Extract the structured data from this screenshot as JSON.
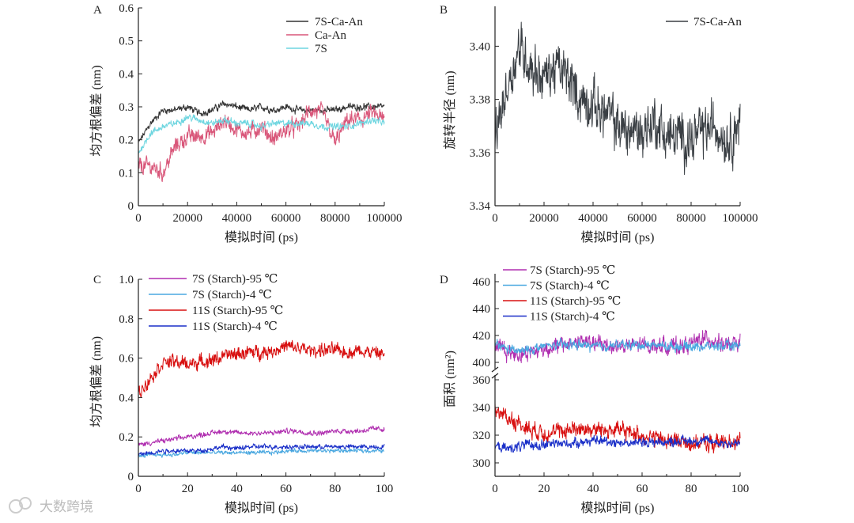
{
  "watermark": "大数跨境",
  "chart_data": [
    {
      "panel": "A",
      "type": "line",
      "xlabel": "模拟时间 (ps)",
      "ylabel": "均方根偏差 (nm)",
      "xlim": [
        0,
        100000
      ],
      "ylim": [
        0,
        0.6
      ],
      "xticks": [
        0,
        20000,
        40000,
        60000,
        80000,
        100000
      ],
      "yticks": [
        0,
        0.1,
        0.2,
        0.3,
        0.4,
        0.5,
        0.6
      ],
      "x_step": 5000,
      "legend": "top-right",
      "series": [
        {
          "name": "7S-Ca-An",
          "color": "#333333",
          "noise": 0.012,
          "values": [
            0.19,
            0.25,
            0.29,
            0.29,
            0.3,
            0.28,
            0.29,
            0.31,
            0.3,
            0.29,
            0.3,
            0.29,
            0.3,
            0.29,
            0.29,
            0.29,
            0.29,
            0.3,
            0.3,
            0.3,
            0.3
          ]
        },
        {
          "name": "Ca-An",
          "color": "#d9577a",
          "noise": 0.03,
          "values": [
            0.12,
            0.12,
            0.1,
            0.18,
            0.21,
            0.21,
            0.22,
            0.26,
            0.23,
            0.22,
            0.24,
            0.2,
            0.23,
            0.24,
            0.29,
            0.28,
            0.19,
            0.26,
            0.26,
            0.28,
            0.26
          ]
        },
        {
          "name": "7S",
          "color": "#6fd6e0",
          "noise": 0.012,
          "values": [
            0.16,
            0.22,
            0.24,
            0.25,
            0.27,
            0.26,
            0.25,
            0.26,
            0.25,
            0.25,
            0.24,
            0.25,
            0.25,
            0.25,
            0.25,
            0.24,
            0.24,
            0.24,
            0.25,
            0.26,
            0.25
          ]
        }
      ]
    },
    {
      "panel": "B",
      "type": "line",
      "xlabel": "模拟时间 (ps)",
      "ylabel": "旋转半径 (nm)",
      "xlim": [
        0,
        100000
      ],
      "ylim": [
        3.34,
        3.415
      ],
      "xticks": [
        0,
        20000,
        40000,
        60000,
        80000,
        100000
      ],
      "yticks": [
        "3.34",
        "3.36",
        "3.38",
        "3.40"
      ],
      "x_step": 5000,
      "legend": "top-right",
      "series": [
        {
          "name": "7S-Ca-An",
          "color": "#3a3f44",
          "noise": 0.011,
          "values": [
            3.365,
            3.385,
            3.4,
            3.392,
            3.388,
            3.392,
            3.388,
            3.38,
            3.378,
            3.375,
            3.37,
            3.368,
            3.368,
            3.372,
            3.366,
            3.366,
            3.365,
            3.368,
            3.37,
            3.365,
            3.372
          ]
        }
      ]
    },
    {
      "panel": "C",
      "type": "line",
      "xlabel": "模拟时间 (ps)",
      "ylabel": "均方根偏差 (nm)",
      "xlim": [
        0,
        100
      ],
      "ylim": [
        0,
        1.0
      ],
      "xticks": [
        0,
        20,
        40,
        60,
        80,
        100
      ],
      "yticks": [
        "0",
        "0.2",
        "0.4",
        "0.6",
        "0.8",
        "1.0"
      ],
      "x_step": 5,
      "legend": "top-left",
      "series": [
        {
          "name": "7S (Starch)-95 ℃",
          "color": "#b02fb0",
          "noise": 0.015,
          "values": [
            0.16,
            0.17,
            0.18,
            0.19,
            0.2,
            0.21,
            0.22,
            0.23,
            0.22,
            0.22,
            0.22,
            0.22,
            0.23,
            0.23,
            0.22,
            0.22,
            0.23,
            0.23,
            0.23,
            0.24,
            0.24
          ]
        },
        {
          "name": "7S (Starch)-4 ℃",
          "color": "#4aa8e0",
          "noise": 0.012,
          "values": [
            0.1,
            0.11,
            0.11,
            0.11,
            0.12,
            0.12,
            0.12,
            0.12,
            0.12,
            0.12,
            0.12,
            0.12,
            0.13,
            0.13,
            0.13,
            0.13,
            0.13,
            0.13,
            0.13,
            0.13,
            0.13
          ]
        },
        {
          "name": "11S (Starch)-95 ℃",
          "color": "#d81010",
          "noise": 0.04,
          "values": [
            0.42,
            0.5,
            0.58,
            0.58,
            0.57,
            0.58,
            0.59,
            0.61,
            0.62,
            0.63,
            0.63,
            0.64,
            0.66,
            0.65,
            0.64,
            0.64,
            0.64,
            0.63,
            0.64,
            0.63,
            0.62
          ]
        },
        {
          "name": "11S (Starch)-4 ℃",
          "color": "#1a2fc8",
          "noise": 0.014,
          "values": [
            0.11,
            0.12,
            0.13,
            0.13,
            0.13,
            0.13,
            0.14,
            0.15,
            0.14,
            0.15,
            0.15,
            0.15,
            0.15,
            0.15,
            0.15,
            0.15,
            0.15,
            0.15,
            0.15,
            0.15,
            0.15
          ]
        }
      ]
    },
    {
      "panel": "D",
      "type": "line",
      "xlabel": "模拟时间 (ps)",
      "ylabel": "面积 (nm²)",
      "xlim": [
        0,
        100
      ],
      "ylim": [
        290,
        465
      ],
      "axis_break": [
        365,
        395
      ],
      "xticks": [
        0,
        20,
        40,
        60,
        80,
        100
      ],
      "yticks": [
        300,
        320,
        340,
        360,
        400,
        420,
        440,
        460
      ],
      "x_step": 5,
      "legend": "top-left",
      "series": [
        {
          "name": "7S (Starch)-95 ℃",
          "color": "#b02fb0",
          "noise": 7,
          "values": [
            415,
            408,
            406,
            408,
            410,
            412,
            414,
            416,
            414,
            413,
            412,
            412,
            413,
            413,
            412,
            412,
            414,
            418,
            416,
            412,
            414
          ]
        },
        {
          "name": "7S (Starch)-4 ℃",
          "color": "#4aa8e0",
          "noise": 4,
          "values": [
            414,
            410,
            408,
            410,
            412,
            413,
            413,
            413,
            412,
            412,
            413,
            413,
            413,
            413,
            412,
            412,
            412,
            412,
            412,
            412,
            413
          ]
        },
        {
          "name": "11S (Starch)-95 ℃",
          "color": "#d81010",
          "noise": 7,
          "values": [
            338,
            333,
            328,
            324,
            322,
            322,
            324,
            325,
            324,
            324,
            324,
            322,
            320,
            318,
            316,
            316,
            314,
            314,
            314,
            316,
            316
          ]
        },
        {
          "name": "11S (Starch)-4 ℃",
          "color": "#1a2fc8",
          "noise": 4,
          "values": [
            312,
            310,
            312,
            313,
            313,
            314,
            314,
            315,
            316,
            316,
            315,
            314,
            315,
            315,
            315,
            316,
            316,
            316,
            315,
            314,
            314
          ]
        }
      ]
    }
  ]
}
